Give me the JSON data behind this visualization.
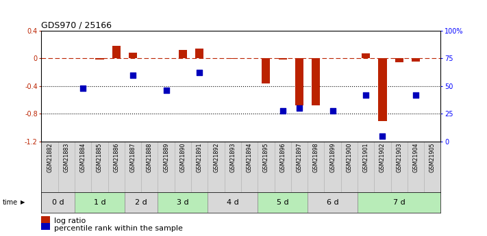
{
  "title": "GDS970 / 25166",
  "samples": [
    "GSM21882",
    "GSM21883",
    "GSM21884",
    "GSM21885",
    "GSM21886",
    "GSM21887",
    "GSM21888",
    "GSM21889",
    "GSM21890",
    "GSM21891",
    "GSM21892",
    "GSM21893",
    "GSM21894",
    "GSM21895",
    "GSM21896",
    "GSM21897",
    "GSM21898",
    "GSM21899",
    "GSM21900",
    "GSM21901",
    "GSM21902",
    "GSM21903",
    "GSM21904",
    "GSM21905"
  ],
  "log_ratio": [
    0.0,
    0.0,
    0.0,
    -0.02,
    0.18,
    0.08,
    0.0,
    0.0,
    0.12,
    0.14,
    0.0,
    -0.01,
    0.0,
    -0.36,
    -0.02,
    -0.68,
    -0.68,
    0.0,
    0.0,
    0.07,
    -0.9,
    -0.06,
    -0.05,
    0.0
  ],
  "percentile_rank": [
    null,
    null,
    48,
    null,
    null,
    60,
    null,
    46,
    null,
    62,
    null,
    null,
    null,
    null,
    28,
    30,
    null,
    28,
    null,
    42,
    5,
    null,
    42,
    null
  ],
  "time_groups": [
    {
      "label": "0 d",
      "start": 0,
      "end": 2,
      "color": "#d8d8d8"
    },
    {
      "label": "1 d",
      "start": 2,
      "end": 5,
      "color": "#b8ecb8"
    },
    {
      "label": "2 d",
      "start": 5,
      "end": 7,
      "color": "#d8d8d8"
    },
    {
      "label": "3 d",
      "start": 7,
      "end": 10,
      "color": "#b8ecb8"
    },
    {
      "label": "4 d",
      "start": 10,
      "end": 13,
      "color": "#d8d8d8"
    },
    {
      "label": "5 d",
      "start": 13,
      "end": 16,
      "color": "#b8ecb8"
    },
    {
      "label": "6 d",
      "start": 16,
      "end": 19,
      "color": "#d8d8d8"
    },
    {
      "label": "7 d",
      "start": 19,
      "end": 24,
      "color": "#b8ecb8"
    }
  ],
  "ylim_left": [
    -1.2,
    0.4
  ],
  "ylim_right": [
    0,
    100
  ],
  "yticks_left": [
    0.4,
    0.0,
    -0.4,
    -0.8,
    -1.2
  ],
  "ytick_labels_left": [
    "0.4",
    "0",
    "-0.4",
    "-0.8",
    "-1.2"
  ],
  "yticks_right": [
    100,
    75,
    50,
    25,
    0
  ],
  "ytick_labels_right": [
    "100%",
    "75",
    "50",
    "25",
    "0"
  ],
  "bar_color": "#bb2200",
  "dot_color": "#0000bb",
  "bar_width": 0.5,
  "dot_size": 40,
  "legend_items": [
    "log ratio",
    "percentile rank within the sample"
  ],
  "legend_colors": [
    "#bb2200",
    "#0000bb"
  ],
  "label_bg": "#d8d8d8",
  "label_divider_color": "#aaaaaa"
}
